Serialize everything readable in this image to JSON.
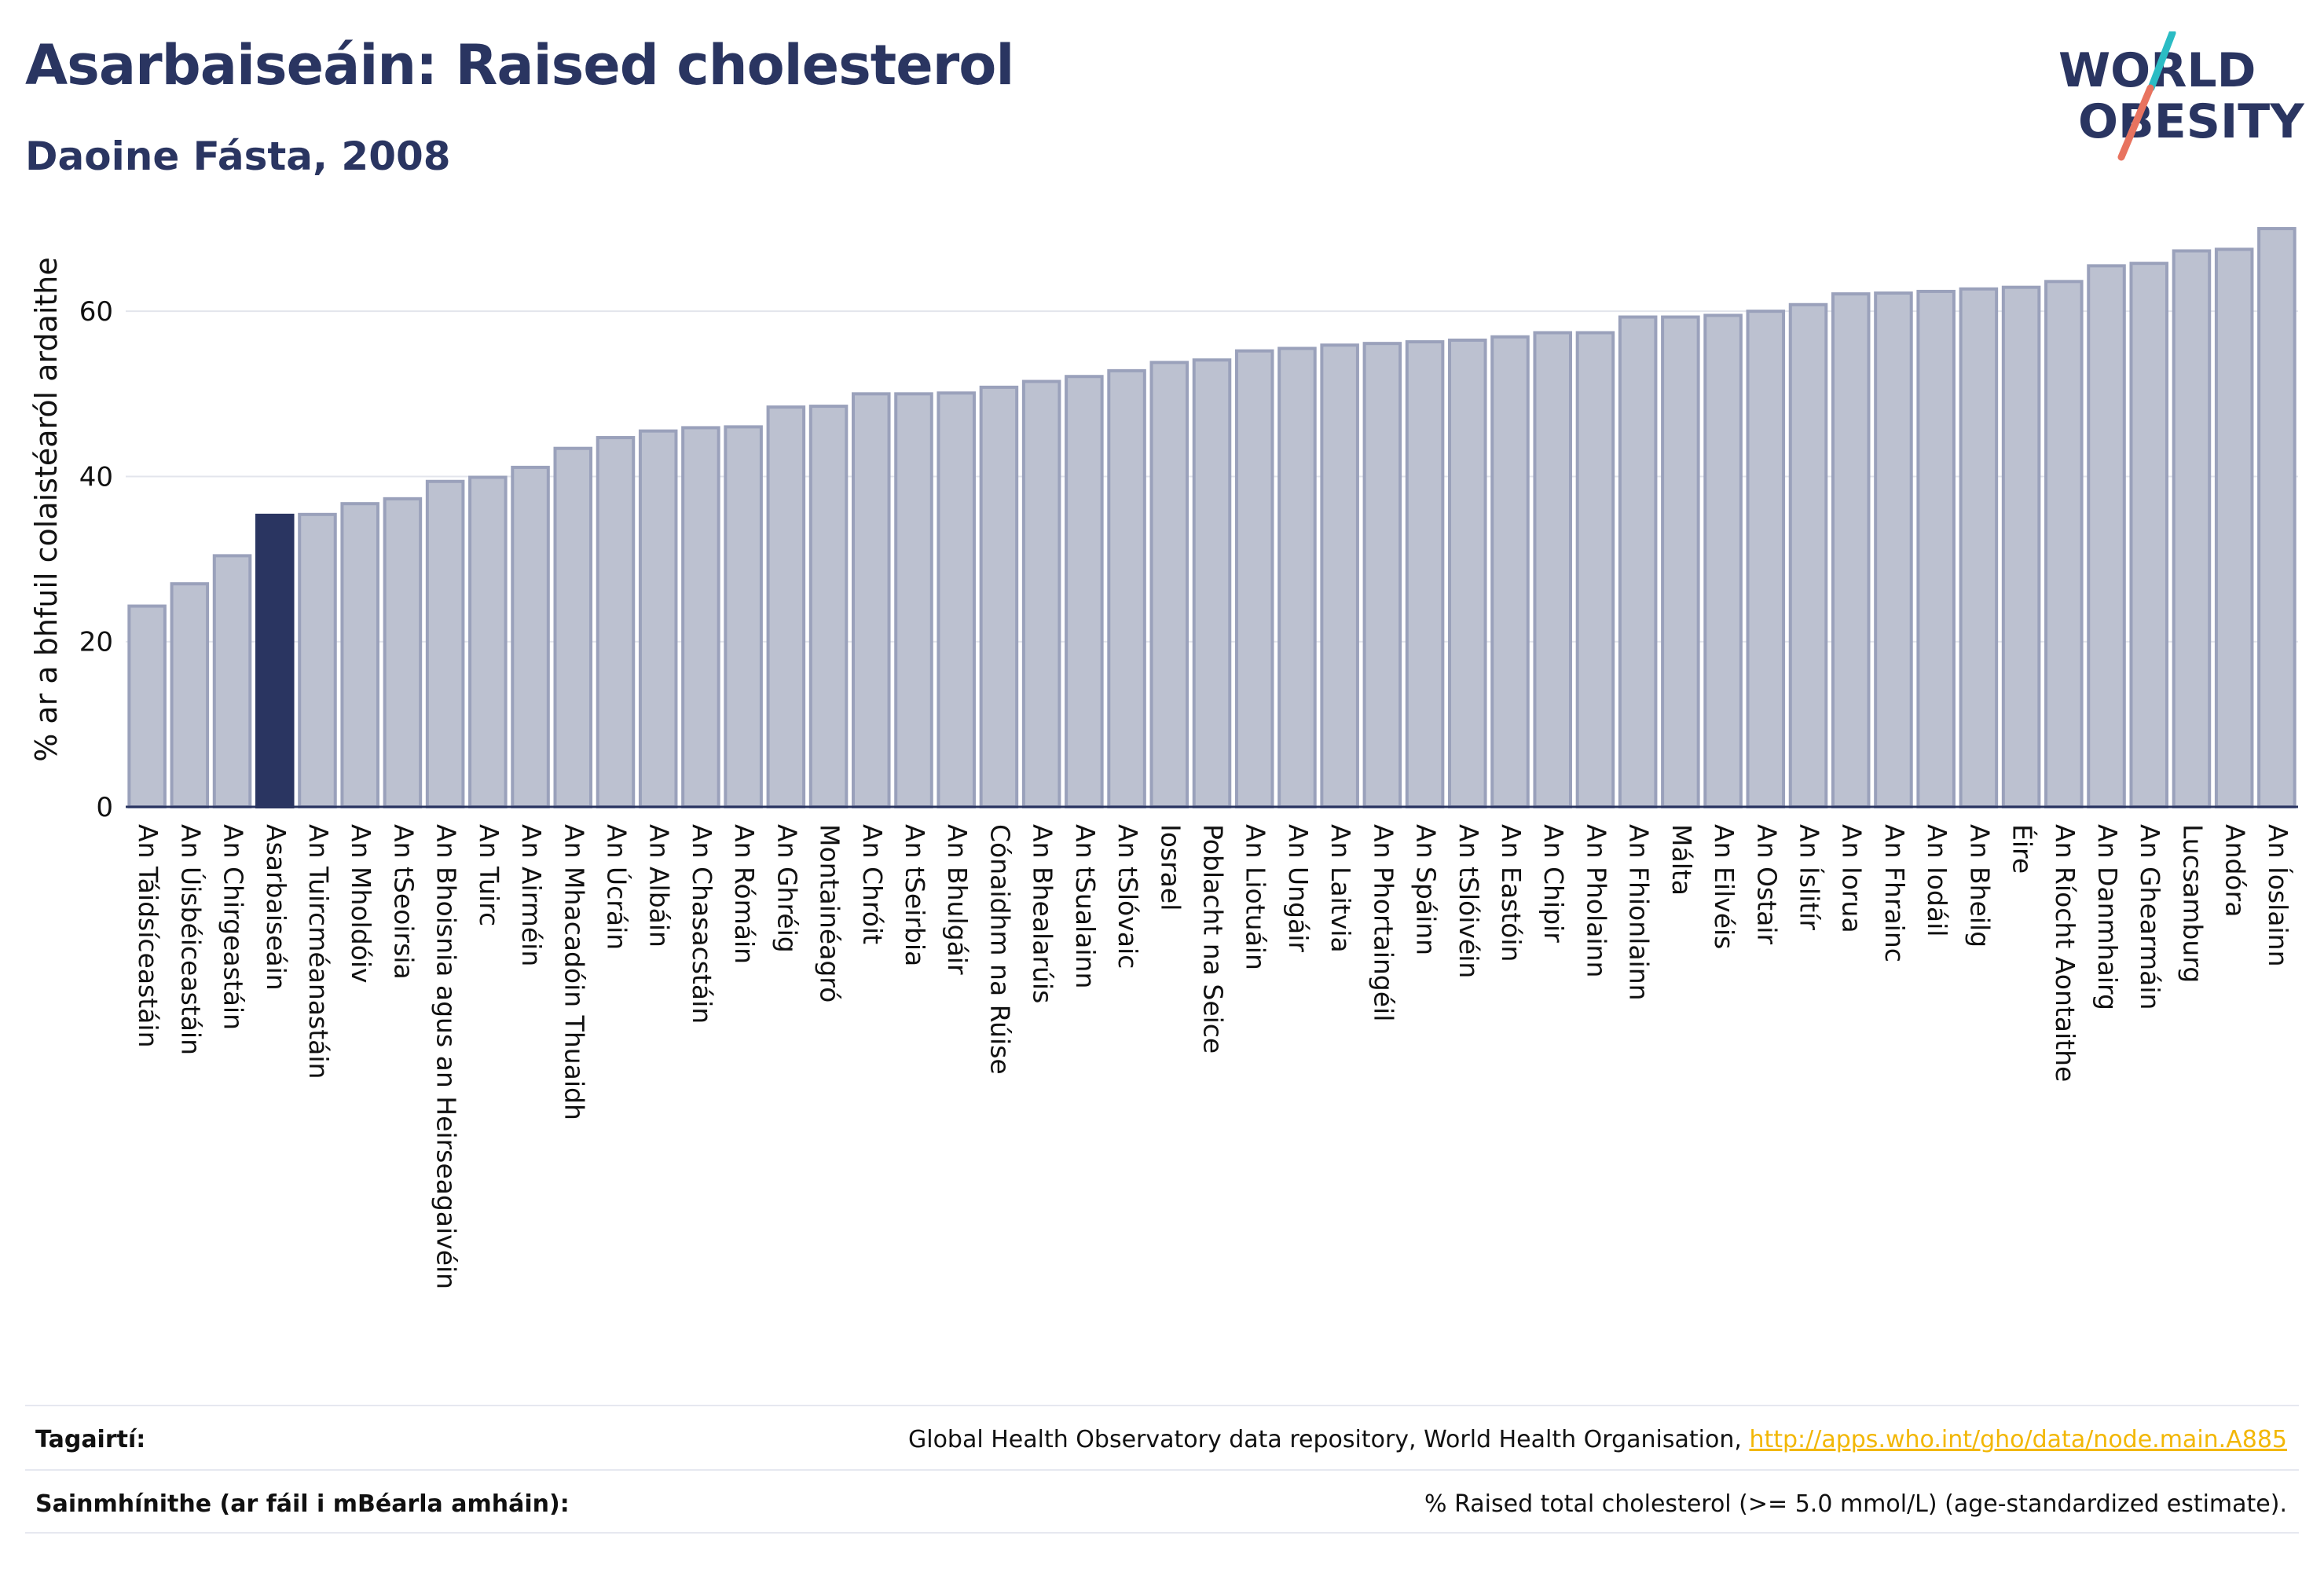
{
  "header": {
    "title": "Asarbaiseáin: Raised cholesterol",
    "subtitle": "Daoine Fásta, 2008"
  },
  "logo": {
    "line1": "WORLD",
    "line2": "OBESITY",
    "colors": {
      "text": "#2a3561",
      "slash_teal": "#2bbcc4",
      "slash_coral": "#e8735f"
    }
  },
  "colors": {
    "bar_default": "#bcc1d0",
    "bar_stroke": "#9aa1bb",
    "bar_highlight": "#2a3561",
    "axis": "#2a3561",
    "grid": "#e3e5ec"
  },
  "chart_data": {
    "type": "bar",
    "ylabel": "% ar a bhfuil colaistéaról ardaithe",
    "ylim": [
      0,
      72
    ],
    "yticks": [
      0,
      20,
      40,
      60
    ],
    "grid": true,
    "highlight_category": "Asarbaiseáin",
    "categories": [
      "An Táidsíceastáin",
      "An Úisbéiceastáin",
      "An Chirgeastáin",
      "Asarbaiseáin",
      "An Tuircméanastáin",
      "An Mholdóiv",
      "An tSeoirsia",
      "An Bhoisnia agus an Heirseagaivéin",
      "An Tuirc",
      "An Airméin",
      "An Mhacadóin Thuaidh",
      "An Úcráin",
      "An Albáin",
      "An Chasacstáin",
      "An Rómáin",
      "An Ghréig",
      "Montainéagró",
      "An Chróit",
      "An tSeirbia",
      "An Bhulgáir",
      "Cónaidhm na Rúise",
      "An Bhealarúis",
      "An tSualainn",
      "An tSlóvaic",
      "Iosrael",
      "Poblacht na Seice",
      "An Liotuáin",
      "An Ungáir",
      "An Laitvia",
      "An Phortaingéil",
      "An Spáinn",
      "An tSlóivéin",
      "An Eastóin",
      "An Chipir",
      "An Pholainn",
      "An Fhionlainn",
      "Málta",
      "An Eilvéis",
      "An Ostair",
      "An Íslitír",
      "An Iorua",
      "An Fhrainc",
      "An Iodáil",
      "An Bheilg",
      "Éire",
      "An Ríocht Aontaithe",
      "An Danmhairg",
      "An Ghearmáin",
      "Lucsamburg",
      "Andóra",
      "An Íoslainn"
    ],
    "values": [
      24.3,
      27.0,
      30.4,
      35.3,
      35.4,
      36.7,
      37.3,
      39.4,
      39.9,
      41.1,
      43.4,
      44.7,
      45.5,
      45.9,
      46.0,
      48.4,
      48.5,
      50.0,
      50.0,
      50.1,
      50.8,
      51.5,
      52.1,
      52.8,
      53.8,
      54.1,
      55.2,
      55.5,
      55.9,
      56.1,
      56.3,
      56.5,
      56.9,
      57.4,
      57.4,
      59.3,
      59.3,
      59.5,
      60.0,
      60.8,
      62.1,
      62.2,
      62.4,
      62.7,
      62.9,
      63.6,
      65.5,
      65.8,
      67.3,
      67.5,
      70.0
    ]
  },
  "footer": {
    "references_label": "Tagairtí:",
    "references_text": "Global Health Observatory data repository, World Health Organisation,",
    "references_link": "http://apps.who.int/gho/data/node.main.A885",
    "definitions_label": "Sainmhínithe (ar fáil i mBéarla amháin):",
    "definitions_text": "% Raised total cholesterol (>= 5.0 mmol/L) (age-standardized estimate)."
  }
}
